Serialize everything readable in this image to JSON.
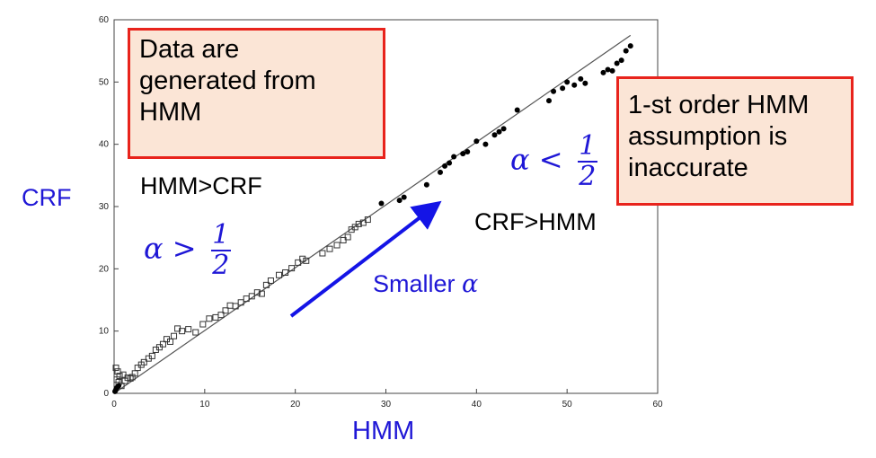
{
  "chart_data": {
    "type": "scatter",
    "xlabel": "HMM",
    "ylabel": "CRF",
    "xlim": [
      0,
      60
    ],
    "ylim": [
      0,
      60
    ],
    "xticks": [
      "0",
      "10",
      "20",
      "30",
      "40",
      "50",
      "60"
    ],
    "yticks": [
      "0",
      "10",
      "20",
      "30",
      "40",
      "50",
      "60"
    ],
    "grid": false,
    "reference_line": {
      "x": [
        0,
        57
      ],
      "y": [
        0,
        57.5
      ]
    },
    "series": [
      {
        "marker": "square",
        "x": [
          0.2,
          0.3,
          0.4,
          0.5,
          0.6,
          0.8,
          1.0,
          1.2,
          1.5,
          1.8,
          2.0,
          2.3,
          2.6,
          3.0,
          3.3,
          3.8,
          4.2,
          4.6,
          5.0,
          5.4,
          5.8,
          6.2,
          6.6,
          7.0,
          7.5,
          8.2,
          9.0,
          9.8,
          10.5,
          11.2,
          11.8,
          12.3,
          12.8,
          13.4,
          14.0,
          14.6,
          15.2,
          15.8,
          16.3,
          16.8,
          17.3,
          18.2,
          18.9,
          19.6,
          20.3,
          20.8,
          21.2,
          23.0,
          23.8,
          24.6,
          25.3,
          25.8,
          26.2,
          26.6,
          27.0,
          27.5,
          28.0
        ],
        "y": [
          4.1,
          2.2,
          3.5,
          1.8,
          2.8,
          1.2,
          3.0,
          2.0,
          2.5,
          2.4,
          2.6,
          3.2,
          4.1,
          4.6,
          5.0,
          5.6,
          6.0,
          7.0,
          7.4,
          7.9,
          8.7,
          8.3,
          9.2,
          10.4,
          10.0,
          10.3,
          9.8,
          11.1,
          12.0,
          12.2,
          12.6,
          13.3,
          14.1,
          14.0,
          14.6,
          15.2,
          15.6,
          16.2,
          16.0,
          17.4,
          18.1,
          19.0,
          19.4,
          20.1,
          21.0,
          21.6,
          21.3,
          22.5,
          23.2,
          23.8,
          24.6,
          25.1,
          26.3,
          26.7,
          27.2,
          27.4,
          27.9
        ]
      },
      {
        "marker": "dot",
        "x": [
          0.1,
          0.2,
          0.3,
          0.5,
          29.5,
          31.5,
          32.0,
          34.5,
          36.0,
          36.5,
          37.0,
          37.5,
          38.5,
          39.0,
          40.0,
          41.0,
          42.0,
          42.5,
          43.0,
          44.5,
          48.0,
          48.5,
          49.5,
          50.0,
          50.8,
          51.5,
          52.0,
          54.0,
          54.5,
          55.0,
          55.5,
          56.0,
          56.5,
          57.0
        ],
        "y": [
          0.3,
          0.6,
          0.9,
          1.2,
          30.5,
          31.0,
          31.5,
          33.5,
          35.5,
          36.5,
          37.0,
          38.0,
          38.5,
          38.8,
          40.5,
          40.0,
          41.5,
          42.0,
          42.5,
          45.5,
          47.0,
          48.5,
          49.0,
          50.0,
          49.5,
          50.5,
          49.8,
          51.5,
          52.0,
          51.8,
          53.0,
          53.5,
          55.0,
          55.8
        ]
      }
    ]
  },
  "annotations": {
    "box_left": [
      "Data are",
      "generated from",
      "HMM"
    ],
    "box_right": [
      "1-st order HMM",
      "assumption is",
      "inaccurate"
    ],
    "hmm_gt_crf": "HMM>CRF",
    "crf_gt_hmm": "CRF>HMM",
    "alpha_gt": {
      "symbol": "α",
      "op": ">",
      "num": "1",
      "den": "2"
    },
    "alpha_lt": {
      "symbol": "α",
      "op": "<",
      "num": "1",
      "den": "2"
    },
    "smaller_alpha": {
      "text": "Smaller",
      "symbol": "α"
    },
    "x_axis_label": "HMM",
    "y_axis_label": "CRF"
  },
  "colors": {
    "annotation_blue": "#1f17d6",
    "callout_fill": "#fbe5d6",
    "callout_border": "#e8231c",
    "arrow": "#1414e6",
    "line": "#555555"
  }
}
